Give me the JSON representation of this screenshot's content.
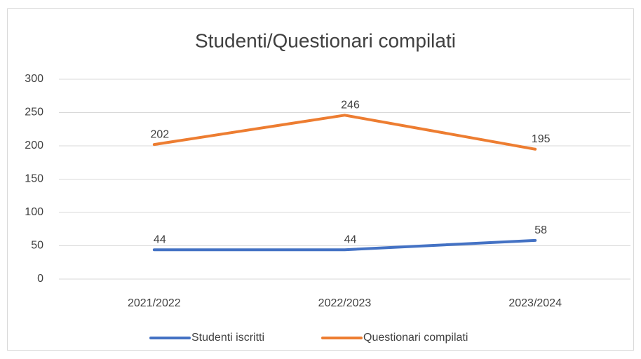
{
  "chart_data": {
    "type": "line",
    "title": "Studenti/Questionari compilati",
    "categories": [
      "2021/2022",
      "2022/2023",
      "2023/2024"
    ],
    "series": [
      {
        "name": "Studenti iscritti",
        "color": "#4472c4",
        "values": [
          44,
          44,
          58
        ]
      },
      {
        "name": "Questionari compilati",
        "color": "#ed7d31",
        "values": [
          202,
          246,
          195
        ]
      }
    ],
    "ylim": [
      0,
      300
    ],
    "yticks": [
      0,
      50,
      100,
      150,
      200,
      250,
      300
    ],
    "grid": true,
    "legend": "bottom"
  }
}
